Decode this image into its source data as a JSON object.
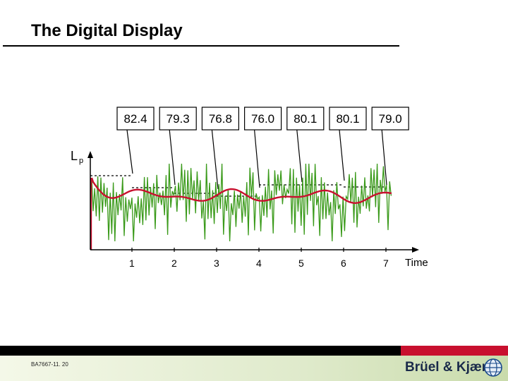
{
  "title": "The Digital Display",
  "footer": {
    "doc_id": "BA7667-11. 20",
    "brand": "Brüel & Kjær"
  },
  "chart_data": {
    "type": "line",
    "ylabel_main": "L",
    "ylabel_sub": "p",
    "xlabel": "Time",
    "ticks": [
      "1",
      "2",
      "3",
      "4",
      "5",
      "6",
      "7"
    ],
    "display_readings": [
      "82.4",
      "79.3",
      "76.8",
      "76.0",
      "80.1",
      "80.1",
      "79.0"
    ],
    "series": [
      {
        "name": "",
        "color": "#3a9a1a"
      },
      {
        "name": "",
        "color": "#c8102e"
      }
    ],
    "colors": {
      "fluctuating": "#3a9a1a",
      "average": "#c8102e",
      "axis": "#000000",
      "hold_line": "#000000"
    }
  }
}
